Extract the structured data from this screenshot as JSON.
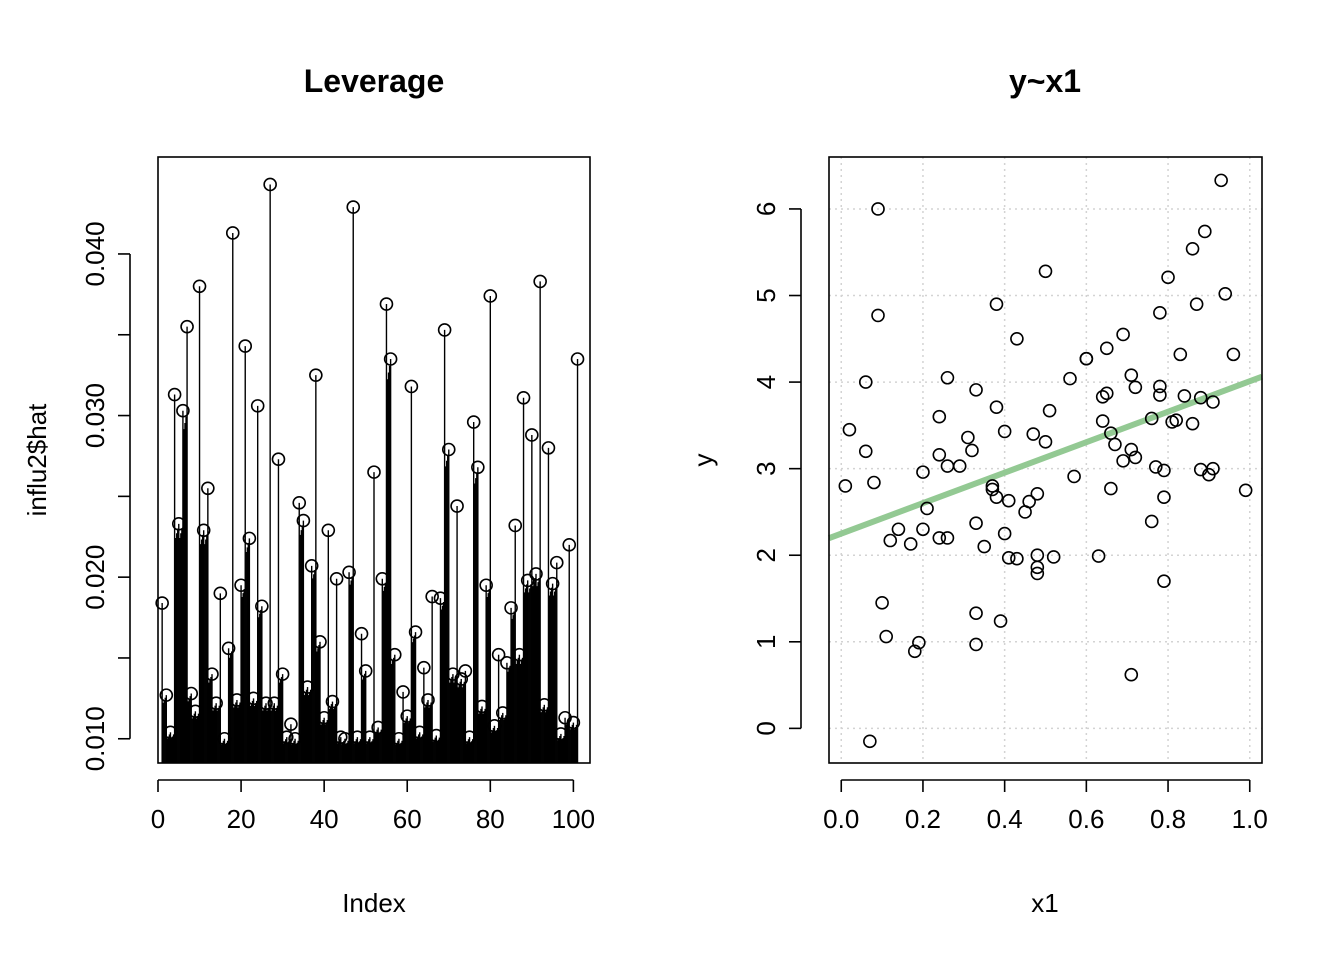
{
  "chart_data": [
    {
      "type": "scatter",
      "title": "Leverage",
      "xlabel": "Index",
      "ylabel": "influ2$hat",
      "xlim": [
        0,
        104
      ],
      "ylim": [
        0.0085,
        0.046
      ],
      "xticks": [
        "0",
        "20",
        "40",
        "60",
        "80",
        "100"
      ],
      "xtick_values": [
        0,
        20,
        40,
        60,
        80,
        100
      ],
      "yticks": [
        "0.010",
        "0.020",
        "0.030",
        "0.040"
      ],
      "ytick_values": [
        0.01,
        0.02,
        0.03,
        0.04
      ],
      "y_minor_ticks": [
        0.015,
        0.025,
        0.035
      ],
      "grid": false,
      "marker": "open-circle",
      "vertical_lines": true,
      "vertical_lines_density": "many more lines than points",
      "points": [
        [
          1,
          0.0184
        ],
        [
          2,
          0.0127
        ],
        [
          3,
          0.0104
        ],
        [
          4,
          0.0313
        ],
        [
          5,
          0.0233
        ],
        [
          6,
          0.0303
        ],
        [
          7,
          0.0355
        ],
        [
          8,
          0.0128
        ],
        [
          9,
          0.0117
        ],
        [
          10,
          0.038
        ],
        [
          11,
          0.0229
        ],
        [
          12,
          0.0255
        ],
        [
          13,
          0.014
        ],
        [
          14,
          0.0122
        ],
        [
          15,
          0.019
        ],
        [
          16,
          0.01
        ],
        [
          17,
          0.0156
        ],
        [
          18,
          0.0413
        ],
        [
          19,
          0.0124
        ],
        [
          20,
          0.0195
        ],
        [
          21,
          0.0343
        ],
        [
          22,
          0.0224
        ],
        [
          23,
          0.0125
        ],
        [
          24,
          0.0306
        ],
        [
          25,
          0.0182
        ],
        [
          26,
          0.0122
        ],
        [
          27,
          0.0443
        ],
        [
          28,
          0.0122
        ],
        [
          29,
          0.0273
        ],
        [
          30,
          0.014
        ],
        [
          31,
          0.0101
        ],
        [
          32,
          0.0109
        ],
        [
          33,
          0.01
        ],
        [
          34,
          0.0246
        ],
        [
          35,
          0.0235
        ],
        [
          36,
          0.0132
        ],
        [
          37,
          0.0207
        ],
        [
          38,
          0.0325
        ],
        [
          39,
          0.016
        ],
        [
          40,
          0.0113
        ],
        [
          41,
          0.0229
        ],
        [
          42,
          0.0123
        ],
        [
          43,
          0.0199
        ],
        [
          44,
          0.0101
        ],
        [
          45,
          0.01
        ],
        [
          46,
          0.0203
        ],
        [
          47,
          0.0429
        ],
        [
          48,
          0.0101
        ],
        [
          49,
          0.0165
        ],
        [
          50,
          0.0142
        ],
        [
          51,
          0.0101
        ],
        [
          52,
          0.0265
        ],
        [
          53,
          0.0107
        ],
        [
          54,
          0.0199
        ],
        [
          55,
          0.0369
        ],
        [
          56,
          0.0335
        ],
        [
          57,
          0.0152
        ],
        [
          58,
          0.01
        ],
        [
          59,
          0.0129
        ],
        [
          60,
          0.0114
        ],
        [
          61,
          0.0318
        ],
        [
          62,
          0.0166
        ],
        [
          63,
          0.0104
        ],
        [
          64,
          0.0144
        ],
        [
          65,
          0.0124
        ],
        [
          66,
          0.0188
        ],
        [
          67,
          0.0102
        ],
        [
          68,
          0.0187
        ],
        [
          69,
          0.0353
        ],
        [
          70,
          0.0279
        ],
        [
          71,
          0.014
        ],
        [
          72,
          0.0244
        ],
        [
          73,
          0.0137
        ],
        [
          74,
          0.0142
        ],
        [
          75,
          0.0101
        ],
        [
          76,
          0.0296
        ],
        [
          77,
          0.0268
        ],
        [
          78,
          0.012
        ],
        [
          79,
          0.0195
        ],
        [
          80,
          0.0374
        ],
        [
          81,
          0.0108
        ],
        [
          82,
          0.0152
        ],
        [
          83,
          0.0116
        ],
        [
          84,
          0.0147
        ],
        [
          85,
          0.0181
        ],
        [
          86,
          0.0232
        ],
        [
          87,
          0.0152
        ],
        [
          88,
          0.0311
        ],
        [
          89,
          0.0198
        ],
        [
          90,
          0.0288
        ],
        [
          91,
          0.0202
        ],
        [
          92,
          0.0383
        ],
        [
          93,
          0.0121
        ],
        [
          94,
          0.028
        ],
        [
          95,
          0.0196
        ],
        [
          96,
          0.0209
        ],
        [
          97,
          0.0103
        ],
        [
          98,
          0.0113
        ],
        [
          99,
          0.022
        ],
        [
          100,
          0.011
        ],
        [
          101,
          0.0335
        ]
      ]
    },
    {
      "type": "scatter",
      "title": "y~x1",
      "xlabel": "x1",
      "ylabel": "y",
      "xlim": [
        -0.03,
        1.03
      ],
      "ylim": [
        -0.4,
        6.6
      ],
      "xticks": [
        "0.0",
        "0.2",
        "0.4",
        "0.6",
        "0.8",
        "1.0"
      ],
      "xtick_values": [
        0,
        0.2,
        0.4,
        0.6,
        0.8,
        1.0
      ],
      "yticks": [
        "0",
        "1",
        "2",
        "3",
        "4",
        "5",
        "6"
      ],
      "ytick_values": [
        0,
        1,
        2,
        3,
        4,
        5,
        6
      ],
      "grid": true,
      "marker": "open-circle",
      "fit_line": {
        "intercept": 2.25,
        "slope": 1.76,
        "color": "#93c993"
      },
      "points": [
        [
          0.01,
          2.8
        ],
        [
          0.02,
          3.45
        ],
        [
          0.06,
          3.2
        ],
        [
          0.06,
          4.0
        ],
        [
          0.07,
          -0.15
        ],
        [
          0.08,
          2.84
        ],
        [
          0.09,
          4.77
        ],
        [
          0.09,
          6.0
        ],
        [
          0.1,
          1.45
        ],
        [
          0.11,
          1.06
        ],
        [
          0.12,
          2.17
        ],
        [
          0.14,
          2.3
        ],
        [
          0.17,
          2.13
        ],
        [
          0.18,
          0.89
        ],
        [
          0.19,
          0.99
        ],
        [
          0.2,
          2.3
        ],
        [
          0.2,
          2.96
        ],
        [
          0.21,
          2.54
        ],
        [
          0.24,
          3.16
        ],
        [
          0.24,
          3.6
        ],
        [
          0.24,
          2.2
        ],
        [
          0.26,
          4.05
        ],
        [
          0.26,
          2.2
        ],
        [
          0.26,
          3.03
        ],
        [
          0.29,
          3.03
        ],
        [
          0.31,
          3.36
        ],
        [
          0.32,
          3.21
        ],
        [
          0.33,
          2.37
        ],
        [
          0.33,
          1.33
        ],
        [
          0.33,
          0.97
        ],
        [
          0.33,
          3.91
        ],
        [
          0.35,
          2.1
        ],
        [
          0.37,
          2.76
        ],
        [
          0.37,
          2.8
        ],
        [
          0.38,
          2.67
        ],
        [
          0.38,
          3.71
        ],
        [
          0.38,
          4.9
        ],
        [
          0.39,
          1.24
        ],
        [
          0.4,
          2.25
        ],
        [
          0.4,
          3.43
        ],
        [
          0.41,
          2.63
        ],
        [
          0.41,
          1.97
        ],
        [
          0.43,
          1.96
        ],
        [
          0.43,
          4.5
        ],
        [
          0.45,
          2.5
        ],
        [
          0.46,
          2.62
        ],
        [
          0.47,
          3.4
        ],
        [
          0.48,
          2.0
        ],
        [
          0.48,
          1.86
        ],
        [
          0.48,
          1.79
        ],
        [
          0.48,
          2.71
        ],
        [
          0.5,
          3.31
        ],
        [
          0.5,
          5.28
        ],
        [
          0.51,
          3.67
        ],
        [
          0.52,
          1.98
        ],
        [
          0.56,
          4.04
        ],
        [
          0.57,
          2.91
        ],
        [
          0.6,
          4.27
        ],
        [
          0.6,
          4.27
        ],
        [
          0.63,
          1.99
        ],
        [
          0.64,
          3.55
        ],
        [
          0.64,
          3.83
        ],
        [
          0.65,
          3.87
        ],
        [
          0.65,
          4.39
        ],
        [
          0.66,
          3.41
        ],
        [
          0.66,
          2.77
        ],
        [
          0.67,
          3.28
        ],
        [
          0.69,
          4.55
        ],
        [
          0.69,
          3.09
        ],
        [
          0.71,
          0.62
        ],
        [
          0.71,
          4.08
        ],
        [
          0.71,
          3.22
        ],
        [
          0.72,
          3.13
        ],
        [
          0.72,
          3.94
        ],
        [
          0.76,
          3.58
        ],
        [
          0.76,
          2.39
        ],
        [
          0.77,
          3.02
        ],
        [
          0.78,
          3.95
        ],
        [
          0.78,
          3.85
        ],
        [
          0.78,
          4.8
        ],
        [
          0.79,
          2.98
        ],
        [
          0.79,
          2.67
        ],
        [
          0.79,
          1.7
        ],
        [
          0.8,
          5.21
        ],
        [
          0.81,
          3.54
        ],
        [
          0.82,
          3.56
        ],
        [
          0.83,
          4.32
        ],
        [
          0.84,
          3.84
        ],
        [
          0.86,
          3.52
        ],
        [
          0.86,
          5.54
        ],
        [
          0.87,
          4.9
        ],
        [
          0.88,
          3.82
        ],
        [
          0.88,
          2.99
        ],
        [
          0.89,
          5.74
        ],
        [
          0.9,
          2.93
        ],
        [
          0.91,
          3.0
        ],
        [
          0.91,
          3.77
        ],
        [
          0.93,
          6.33
        ],
        [
          0.94,
          5.02
        ],
        [
          0.96,
          4.32
        ],
        [
          0.99,
          2.75
        ]
      ]
    }
  ]
}
